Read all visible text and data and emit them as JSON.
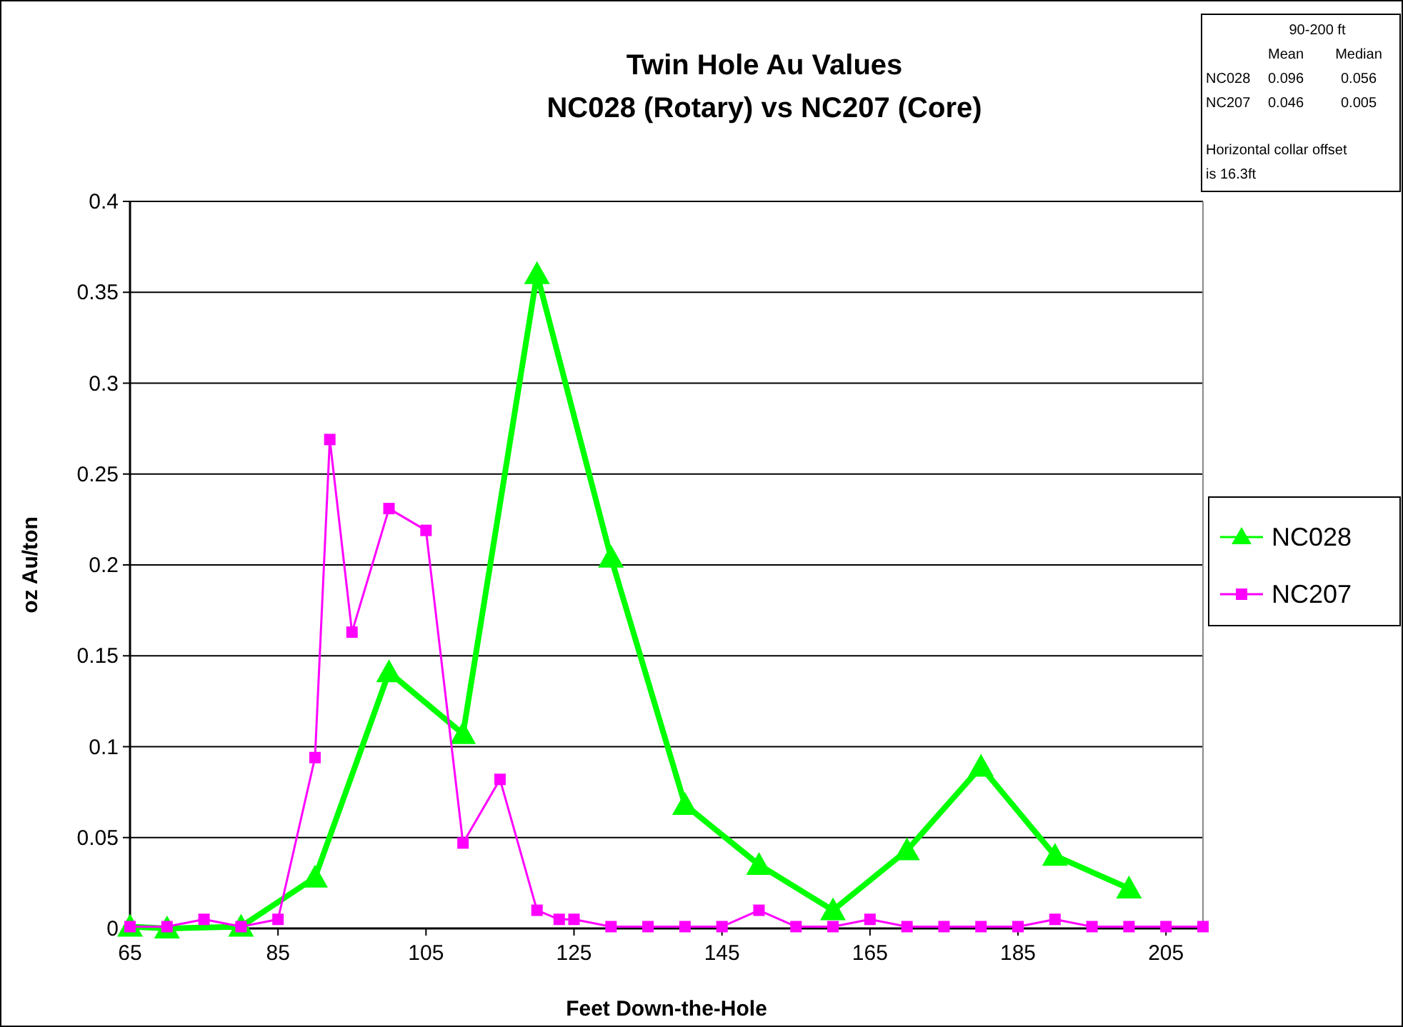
{
  "chart_data": {
    "type": "line",
    "title": "Twin Hole Au Values\nNC028 (Rotary) vs NC207 (Core)",
    "xlabel": "Feet Down-the-Hole",
    "ylabel": "oz Au/ton",
    "xlim": [
      65,
      210
    ],
    "xticks": [
      65,
      85,
      105,
      125,
      145,
      165,
      185,
      205
    ],
    "ylim": [
      0,
      0.4
    ],
    "yticks": [
      0,
      0.05,
      0.1,
      0.15,
      0.2,
      0.25,
      0.3,
      0.35,
      0.4
    ],
    "grid": "y",
    "legend": "right",
    "series": [
      {
        "name": "NC028",
        "color": "#00ff00",
        "marker": "triangle",
        "x": [
          65,
          70,
          80,
          90,
          100,
          110,
          120,
          130,
          140,
          150,
          160,
          170,
          180,
          190,
          200
        ],
        "values": [
          0.001,
          0,
          0.001,
          0.028,
          0.141,
          0.107,
          0.36,
          0.204,
          0.068,
          0.035,
          0.01,
          0.043,
          0.089,
          0.04,
          0.022
        ]
      },
      {
        "name": "NC207",
        "color": "#ff00ff",
        "marker": "square",
        "x": [
          65,
          70,
          75,
          80,
          85,
          90,
          92,
          95,
          100,
          105,
          110,
          115,
          120,
          123,
          125,
          130,
          135,
          140,
          145,
          150,
          155,
          160,
          165,
          170,
          175,
          180,
          185,
          190,
          195,
          200,
          205,
          210
        ],
        "values": [
          0.001,
          0.001,
          0.005,
          0.001,
          0.005,
          0.094,
          0.269,
          0.163,
          0.231,
          0.219,
          0.047,
          0.082,
          0.01,
          0.005,
          0.005,
          0.001,
          0.001,
          0.001,
          0.001,
          0.01,
          0.001,
          0.001,
          0.005,
          0.001,
          0.001,
          0.001,
          0.001,
          0.005,
          0.001,
          0.001,
          0.001,
          0.001
        ]
      }
    ],
    "annotations": [
      "90-200 ft",
      "Mean",
      "Median",
      "NC028",
      "0.096",
      "0.056",
      "NC207",
      "0.046",
      "0.005",
      "Horizontal collar offset\nis 16.3ft"
    ]
  }
}
